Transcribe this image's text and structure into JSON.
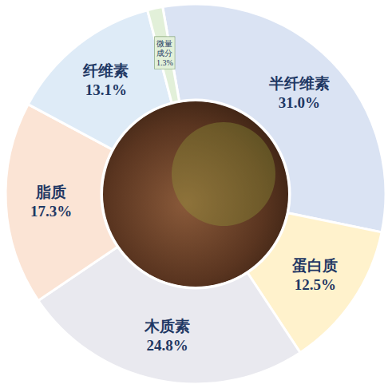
{
  "chart_data": {
    "type": "pie",
    "categories": [
      "半纤维素",
      "蛋白质",
      "木质素",
      "脂质",
      "纤维素",
      "微量成分"
    ],
    "values": [
      31.0,
      12.5,
      24.8,
      17.3,
      13.1,
      1.3
    ],
    "value_labels": [
      "31.0%",
      "12.5%",
      "24.8%",
      "17.3%",
      "13.1%",
      "1.3%"
    ],
    "colors": [
      "#dae3f3",
      "#fff2cc",
      "#e9e9ef",
      "#fbe4d5",
      "#deebf7",
      "#e2f0d9"
    ],
    "data_labels": true
  }
}
